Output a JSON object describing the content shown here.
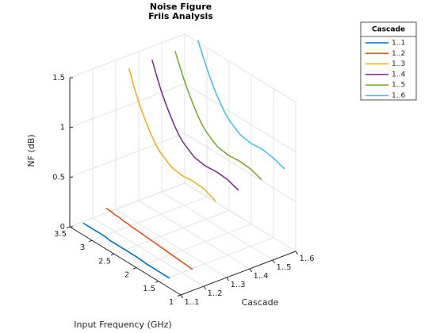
{
  "chart_data": {
    "type": "line3d",
    "title": [
      "Noise Figure",
      "Friis Analysis"
    ],
    "x_label": "Input Frequency (GHz)",
    "y_label": "Cascade",
    "z_label": "NF (dB)",
    "legend_title": "Cascade",
    "legend": "outside-top-right",
    "grid": true,
    "xlim": [
      1,
      3.5
    ],
    "xticks": [
      1,
      1.5,
      2,
      2.5,
      3,
      3.5
    ],
    "ylim": [
      1,
      6
    ],
    "yticks": [
      {
        "value": 1,
        "label": "1..1"
      },
      {
        "value": 2,
        "label": "1..2"
      },
      {
        "value": 3,
        "label": "1..3"
      },
      {
        "value": 4,
        "label": "1..4"
      },
      {
        "value": 5,
        "label": "1..5"
      },
      {
        "value": 6,
        "label": "1..6"
      }
    ],
    "zlim": [
      0,
      1.5
    ],
    "zticks": [
      0,
      0.5,
      1,
      1.5
    ],
    "x": [
      1.25,
      1.5,
      1.75,
      2,
      2.25,
      2.5,
      2.6,
      2.7,
      2.8,
      2.9,
      3,
      3.1,
      3.2
    ],
    "series": [
      {
        "name": "1..1",
        "color": "#0072BD",
        "y": 1,
        "values": [
          0.1,
          0.1,
          0.1,
          0.11,
          0.11,
          0.11,
          0.11,
          0.12,
          0.12,
          0.12,
          0.12,
          0.12,
          0.12
        ]
      },
      {
        "name": "1..2",
        "color": "#D95319",
        "y": 2,
        "values": [
          0.1,
          0.11,
          0.12,
          0.13,
          0.14,
          0.15,
          0.15,
          0.16,
          0.16,
          0.17,
          0.17,
          0.18,
          0.18
        ]
      },
      {
        "name": "1..3",
        "color": "#EDB120",
        "y": 3,
        "values": [
          0.7,
          0.75,
          0.76,
          0.75,
          0.77,
          0.85,
          0.9,
          0.97,
          1.05,
          1.14,
          1.24,
          1.36,
          1.5
        ]
      },
      {
        "name": "1..4",
        "color": "#7E2F8E",
        "y": 4,
        "values": [
          0.72,
          0.76,
          0.77,
          0.76,
          0.78,
          0.86,
          0.91,
          0.98,
          1.06,
          1.15,
          1.25,
          1.37,
          1.5
        ]
      },
      {
        "name": "1..5",
        "color": "#77AC30",
        "y": 5,
        "values": [
          0.74,
          0.78,
          0.79,
          0.78,
          0.8,
          0.88,
          0.93,
          1.0,
          1.08,
          1.17,
          1.27,
          1.38,
          1.5
        ]
      },
      {
        "name": "1..6",
        "color": "#4DBEEE",
        "y": 6,
        "values": [
          0.76,
          0.8,
          0.82,
          0.81,
          0.83,
          0.91,
          0.96,
          1.03,
          1.1,
          1.19,
          1.29,
          1.4,
          1.52
        ]
      }
    ]
  }
}
